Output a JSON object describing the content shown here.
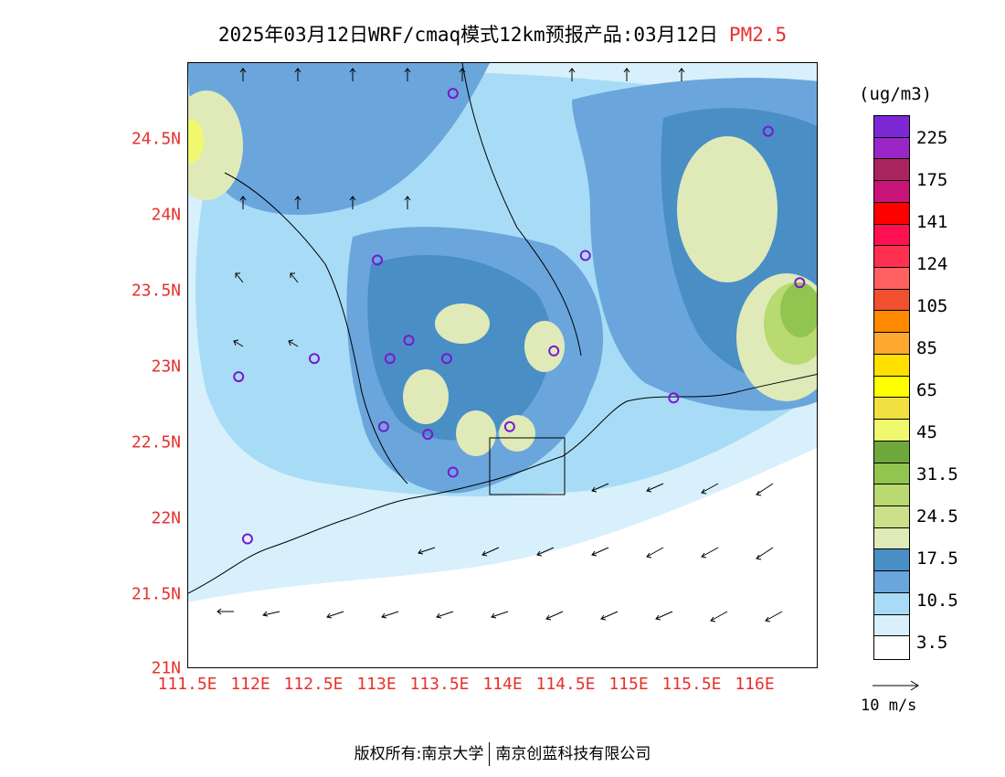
{
  "title": {
    "main": "2025年03月12日WRF/cmaq模式12km预报产品:03月12日",
    "pollutant": "PM2.5"
  },
  "map": {
    "y_ticks": [
      "24.5N",
      "24N",
      "23.5N",
      "23N",
      "22.5N",
      "22N",
      "21.5N",
      "21N"
    ],
    "x_ticks": [
      "111.5E",
      "112E",
      "112.5E",
      "113E",
      "113.5E",
      "114E",
      "114.5E",
      "115E",
      "115.5E",
      "116E"
    ],
    "lat_range": [
      21,
      25
    ],
    "lon_range": [
      111.5,
      116.5
    ],
    "station_icon": "circle-marker-icon",
    "station_color": "#7a18d0",
    "stations": [
      {
        "lon": 113.6,
        "lat": 24.8
      },
      {
        "lon": 116.1,
        "lat": 24.55
      },
      {
        "lon": 113.0,
        "lat": 23.7
      },
      {
        "lon": 114.65,
        "lat": 23.73
      },
      {
        "lon": 116.35,
        "lat": 23.55
      },
      {
        "lon": 112.5,
        "lat": 23.05
      },
      {
        "lon": 111.9,
        "lat": 22.93
      },
      {
        "lon": 113.1,
        "lat": 23.05
      },
      {
        "lon": 113.25,
        "lat": 23.17
      },
      {
        "lon": 113.55,
        "lat": 23.05
      },
      {
        "lon": 114.4,
        "lat": 23.1
      },
      {
        "lon": 115.35,
        "lat": 22.79
      },
      {
        "lon": 113.05,
        "lat": 22.6
      },
      {
        "lon": 113.4,
        "lat": 22.55
      },
      {
        "lon": 114.05,
        "lat": 22.6
      },
      {
        "lon": 113.6,
        "lat": 22.3
      },
      {
        "lon": 111.97,
        "lat": 21.86
      }
    ]
  },
  "legend": {
    "units": "(ug/m3)",
    "colors": [
      "#7b28d4",
      "#9b26c8",
      "#a9245e",
      "#c81478",
      "#ff0000",
      "#ff1050",
      "#ff3050",
      "#ff6060",
      "#f05030",
      "#ff8a00",
      "#ffa830",
      "#ffe000",
      "#ffff00",
      "#f0e040",
      "#f0f870",
      "#6ea83a",
      "#92c450",
      "#b8da70",
      "#cce08c",
      "#dfeab8",
      "#4a8ec6",
      "#6aa6dc",
      "#a8dcf6",
      "#d8f0fb",
      "#ffffff"
    ],
    "labels": [
      "225",
      "175",
      "141",
      "124",
      "105",
      "85",
      "65",
      "45",
      "31.5",
      "24.5",
      "17.5",
      "10.5",
      "3.5"
    ]
  },
  "reference_vector": {
    "label": "10 m/s"
  },
  "footer": {
    "left": "版权所有:南京大学",
    "right": "南京创蓝科技有限公司"
  }
}
